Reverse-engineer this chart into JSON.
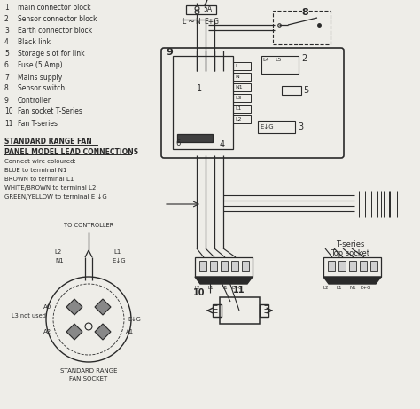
{
  "bg_color": "#eeede8",
  "line_color": "#2a2a2a",
  "legend_items": [
    [
      "1",
      "main connector block"
    ],
    [
      "2",
      "Sensor connector block"
    ],
    [
      "3",
      "Earth connector block"
    ],
    [
      "4",
      "Black link"
    ],
    [
      "5",
      "Storage slot for link"
    ],
    [
      "6",
      "Fuse (5 Amp)"
    ],
    [
      "7",
      "Mains supply"
    ],
    [
      "8",
      "Sensor switch"
    ],
    [
      "9",
      "Controller"
    ],
    [
      "10",
      "Fan socket T-Series"
    ],
    [
      "11",
      "Fan T-series"
    ]
  ],
  "std_range_title1": "STANDARD RANGE FAN",
  "std_range_title2": "PANEL MODEL LEAD CONNECTIONS",
  "std_range_lines": [
    "Connect wire coloured:",
    "BLUE to terminal N1",
    "BROWN to terminal L1",
    "WHITE/BROWN to terminal L2",
    "GREEN/YELLOW to terminal E ↓G"
  ],
  "term_labels": [
    "L",
    "N",
    "N1",
    "L3",
    "L1",
    "L2"
  ]
}
